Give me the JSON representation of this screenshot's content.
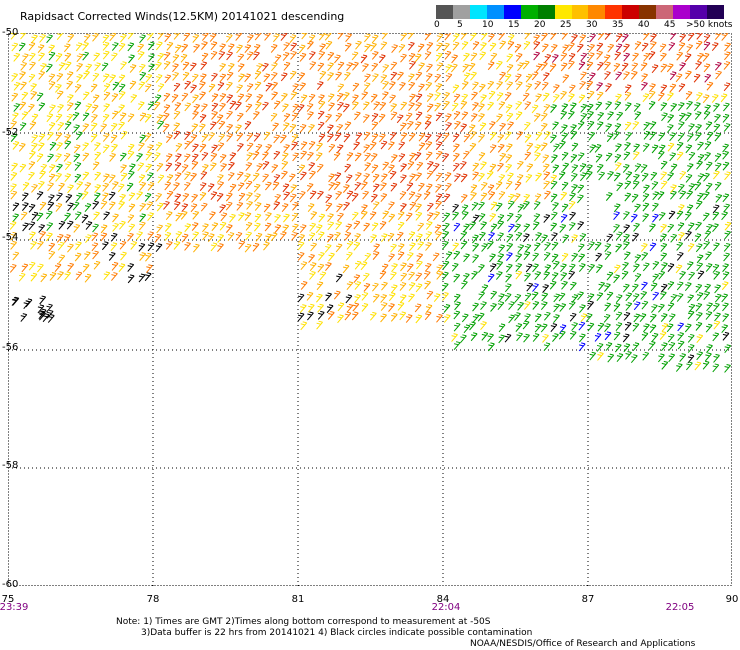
{
  "title": "Rapidsact Corrected Winds(12.5KM) 20141021 descending",
  "legend": {
    "colors": [
      "#555555",
      "#a0a0a0",
      "#00e5ff",
      "#0090ff",
      "#0000ff",
      "#00b000",
      "#008000",
      "#ffe800",
      "#ffc000",
      "#ff8800",
      "#ff3300",
      "#cc0000",
      "#883300",
      "#cc6677",
      "#aa00cc",
      "#5500aa",
      "#220055"
    ],
    "labels": [
      "0",
      "5",
      "10",
      "15",
      "20",
      "25",
      "30",
      "35",
      "40",
      "45",
      ">50 knots"
    ]
  },
  "axes": {
    "lat_labels": [
      "-50",
      "-52",
      "-54",
      "-56",
      "-58",
      "-60"
    ],
    "lon_labels": [
      "75",
      "78",
      "81",
      "84",
      "87",
      "90"
    ],
    "lat_range": [
      -60,
      -50
    ],
    "lon_range": [
      75,
      90
    ]
  },
  "times": [
    "23:39",
    "22:04",
    "22:05"
  ],
  "notes": {
    "line1": "Note: 1) Times are GMT 2)Times along bottom correspond to measurement at -50S",
    "line2": "3)Data buffer is 22 hrs from 20141021 4) Black circles indicate possible contamination",
    "credit": "NOAA/NESDIS/Office of Research and Applications"
  },
  "map": {
    "grid": "dotted",
    "wind_barb_colors": {
      "contaminated": "#000000",
      "15-20": "#00a000",
      "20-25": "#ffe000",
      "25-30": "#ffb000",
      "30-35": "#ff7a00",
      "35-40": "#e03000",
      "40-45": "#b00040",
      "10-15": "#0000ff"
    }
  }
}
